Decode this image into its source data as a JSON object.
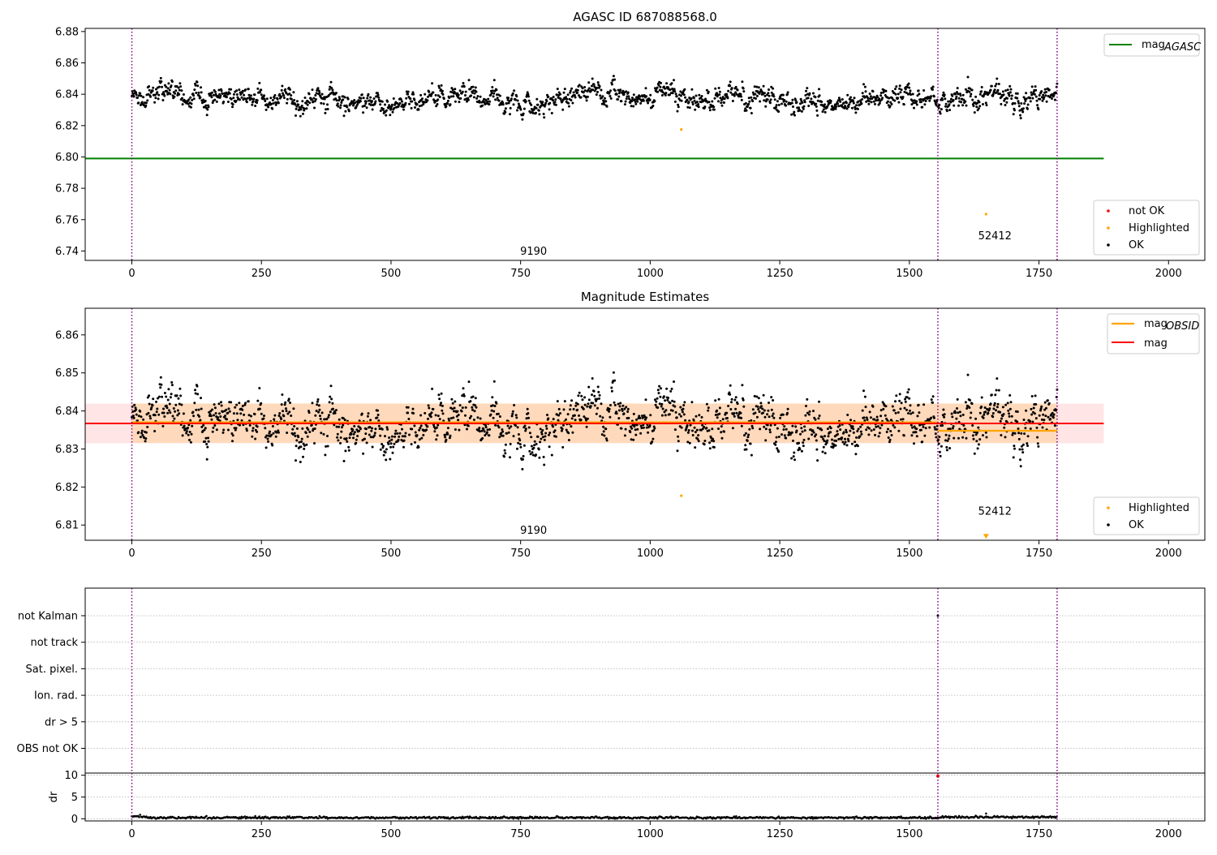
{
  "chart_data": [
    {
      "type": "scatter",
      "title": "AGASC ID 687088568.0",
      "xlim": [
        -90,
        2070
      ],
      "ylim": [
        6.734,
        6.882
      ],
      "xticks": [
        0,
        250,
        500,
        750,
        1000,
        1250,
        1500,
        1750,
        2000
      ],
      "yticks": [
        6.74,
        6.76,
        6.78,
        6.8,
        6.82,
        6.84,
        6.86,
        6.88
      ],
      "ytick_labels": [
        "6.74",
        "6.76",
        "6.78",
        "6.80",
        "6.82",
        "6.84",
        "6.86",
        "6.88"
      ],
      "vlines": [
        0,
        1555,
        1785
      ],
      "reference_line": {
        "label": "mag",
        "label_sub": "AGASC",
        "y": 6.799,
        "x": [
          -90,
          1875
        ],
        "color": "#008000"
      },
      "ok_points": {
        "label": "OK",
        "n": 1785,
        "x_range": [
          0,
          1785
        ],
        "mean": 6.837,
        "amplitude": 0.006,
        "color": "#000000"
      },
      "highlighted": {
        "label": "Highlighted",
        "color": "#ffa500",
        "x": [
          1060,
          1648
        ],
        "y": [
          6.8175,
          6.7635
        ]
      },
      "not_ok": {
        "label": "not OK",
        "color": "#ff0000"
      },
      "annotations": [
        {
          "text": "9190",
          "x": 775,
          "y": 6.7375
        },
        {
          "text": "52412",
          "x": 1665,
          "y": 6.7475
        }
      ],
      "legend_upper": "top-right",
      "legend_lower": "bottom-right"
    },
    {
      "type": "scatter",
      "title": "Magnitude Estimates",
      "xlim": [
        -90,
        2070
      ],
      "ylim": [
        6.806,
        6.867
      ],
      "xticks": [
        0,
        250,
        500,
        750,
        1000,
        1250,
        1500,
        1750,
        2000
      ],
      "yticks": [
        6.81,
        6.82,
        6.83,
        6.84,
        6.85,
        6.86
      ],
      "ytick_labels": [
        "6.81",
        "6.82",
        "6.83",
        "6.84",
        "6.85",
        "6.86"
      ],
      "vlines": [
        0,
        1555,
        1785
      ],
      "mag_line": {
        "label": "mag",
        "y": 6.8367,
        "x": [
          -90,
          1875
        ],
        "band": [
          6.8315,
          6.8419
        ],
        "color": "#ff0000"
      },
      "obsid_segments": [
        {
          "x": [
            0,
            1555
          ],
          "y": 6.837,
          "band": [
            6.8316,
            6.842
          ]
        },
        {
          "x": [
            1555,
            1785
          ],
          "y": 6.8348,
          "band": [
            6.8316,
            6.842
          ]
        }
      ],
      "obsid_label": "mag",
      "obsid_label_sub": "OBSID",
      "obsid_color": "#ffa500",
      "ok_points": {
        "label": "OK",
        "n": 1785,
        "x_range": [
          0,
          1785
        ],
        "mean": 6.8367,
        "amplitude": 0.0055,
        "color": "#000000"
      },
      "highlighted": {
        "label": "Highlighted",
        "color": "#ffa500",
        "x": [
          1060
        ],
        "y": [
          6.8177
        ]
      },
      "arrow": {
        "x": 1648,
        "y": 6.8068,
        "color": "#ffa500"
      },
      "annotations": [
        {
          "text": "9190",
          "x": 775,
          "y": 6.8077
        },
        {
          "text": "52412",
          "x": 1665,
          "y": 6.8127
        }
      ],
      "legend_upper": "top-right",
      "legend_lower": "bottom-right"
    },
    {
      "type": "scatter",
      "xlim": [
        -90,
        2070
      ],
      "flag_labels": [
        "not Kalman",
        "not track",
        "Sat. pixel.",
        "Ion. rad.",
        "dr > 5",
        "OBS not OK"
      ],
      "vlines": [
        0,
        1555,
        1785
      ],
      "dr": {
        "ylabel": "dr",
        "ylim": [
          -0.5,
          10.5
        ],
        "yticks": [
          0,
          5,
          10
        ],
        "ytick_labels": [
          "0",
          "5",
          "10"
        ],
        "mean": 0.25,
        "outlier": {
          "x": 1555,
          "y": 9.8,
          "color": "#ff0000"
        }
      },
      "xticks": [
        0,
        250,
        500,
        750,
        1000,
        1250,
        1500,
        1750,
        2000
      ]
    }
  ]
}
